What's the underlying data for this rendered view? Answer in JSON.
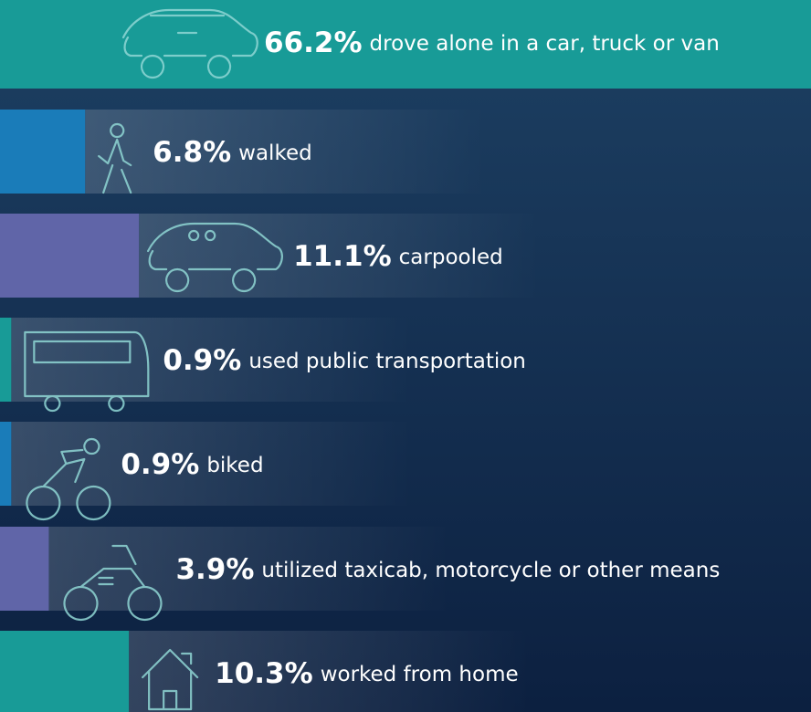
{
  "chart_data": {
    "type": "bar",
    "orientation": "horizontal",
    "categories": [
      "drove alone in a car, truck or van",
      "walked",
      "carpooled",
      "used public transportation",
      "biked",
      "utilized taxicab, motorcycle or other means",
      "worked from home"
    ],
    "values": [
      66.2,
      6.8,
      11.1,
      0.9,
      0.9,
      3.9,
      10.3
    ],
    "value_labels": [
      "66.2%",
      "6.8%",
      "11.1%",
      "0.9%",
      "0.9%",
      "3.9%",
      "10.3%"
    ],
    "colors": [
      "#189b97",
      "#1a7cb9",
      "#6065a8",
      "#189b97",
      "#1a7cb9",
      "#6065a8",
      "#189b97"
    ],
    "xlim": [
      0,
      64.8
    ]
  }
}
